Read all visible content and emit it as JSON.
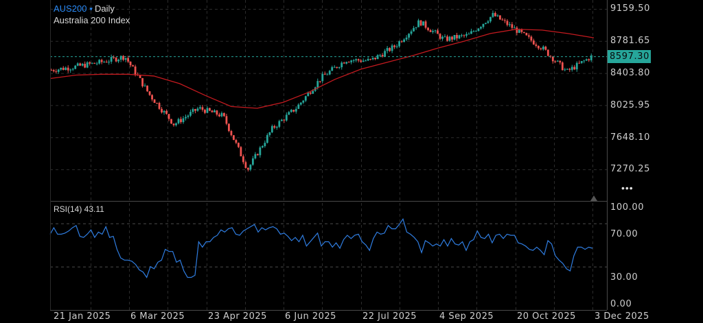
{
  "header": {
    "symbol": "AUS200",
    "symbol_caret": "▾",
    "timeframe": "Daily",
    "description": "Australia 200 Index"
  },
  "rsi_panel": {
    "label": "RSI(14) 43.11",
    "y_ticks": [
      {
        "label": "100.00",
        "value": 100
      },
      {
        "label": "70.00",
        "value": 70
      },
      {
        "label": "30.00",
        "value": 30
      },
      {
        "label": "0.00",
        "value": 0
      }
    ]
  },
  "price_axis": {
    "ticks": [
      {
        "label": "9159.50",
        "value": 9159.5
      },
      {
        "label": "8781.65",
        "value": 8781.65
      },
      {
        "label": "8403.80",
        "value": 8403.8
      },
      {
        "label": "8025.95",
        "value": 8025.95
      },
      {
        "label": "7648.10",
        "value": 7648.1
      },
      {
        "label": "7270.25",
        "value": 7270.25
      }
    ],
    "last_price_label": "8597.30",
    "more_label": "•••"
  },
  "time_axis": {
    "labels": [
      "21 Jan 2025",
      "6 Mar 2025",
      "23 Apr 2025",
      "6 Jun 2025",
      "22 Jul 2025",
      "4 Sep 2025",
      "20 Oct 2025",
      "3 Dec 2025"
    ]
  },
  "colors": {
    "up": "#26a69a",
    "down": "#ef5350",
    "ma": "#c41a1f",
    "rsi": "#2f7de1",
    "last_price": "#26a69a",
    "symbol": "#2a8af6"
  },
  "chart_data": [
    {
      "type": "candlestick",
      "title": "AUS200 Daily — Australia 200 Index",
      "x_labels": [
        "21 Jan 2025",
        "6 Mar 2025",
        "23 Apr 2025",
        "6 Jun 2025",
        "22 Jul 2025",
        "4 Sep 2025",
        "20 Oct 2025",
        "3 Dec 2025"
      ],
      "y_ticks": [
        9159.5,
        8781.65,
        8403.8,
        8025.95,
        7648.1,
        7270.25
      ],
      "ylim": [
        7100,
        9250
      ],
      "last_price": 8597.3,
      "grid": true,
      "close_path": [
        {
          "date": "Dec 2024",
          "close": 8440
        },
        {
          "date": "21 Jan 2025",
          "close": 8480
        },
        {
          "date": "early Feb 2025",
          "close": 8530
        },
        {
          "date": "mid Feb 2025",
          "close": 8600
        },
        {
          "date": "late Feb 2025",
          "close": 8150
        },
        {
          "date": "6 Mar 2025",
          "close": 7800
        },
        {
          "date": "mid Mar 2025",
          "close": 7990
        },
        {
          "date": "late Mar 2025",
          "close": 7900
        },
        {
          "date": "7 Apr 2025",
          "close": 7270
        },
        {
          "date": "mid Apr 2025",
          "close": 7750
        },
        {
          "date": "23 Apr 2025",
          "close": 8000
        },
        {
          "date": "mid May 2025",
          "close": 8350
        },
        {
          "date": "6 Jun 2025",
          "close": 8560
        },
        {
          "date": "late Jun 2025",
          "close": 8550
        },
        {
          "date": "22 Jul 2025",
          "close": 8720
        },
        {
          "date": "mid Aug 2025",
          "close": 9010
        },
        {
          "date": "4 Sep 2025",
          "close": 8800
        },
        {
          "date": "late Sep 2025",
          "close": 8850
        },
        {
          "date": "mid Oct 2025",
          "close": 9090
        },
        {
          "date": "20 Oct 2025",
          "close": 8900
        },
        {
          "date": "early Nov 2025",
          "close": 8700
        },
        {
          "date": "mid Nov 2025",
          "close": 8420
        },
        {
          "date": "3 Dec 2025",
          "close": 8597.3
        }
      ],
      "series": [
        {
          "name": "MA",
          "type": "line",
          "color": "#c41a1f",
          "values": [
            8340,
            8380,
            8390,
            8390,
            8370,
            8280,
            8140,
            8010,
            7990,
            8060,
            8180,
            8330,
            8450,
            8530,
            8610,
            8700,
            8780,
            8870,
            8920,
            8910,
            8870,
            8820
          ]
        }
      ]
    },
    {
      "type": "line",
      "title": "RSI(14)",
      "current_value": 43.11,
      "ylim": [
        0,
        100
      ],
      "reference_lines": [
        70,
        30
      ],
      "values": [
        60,
        66,
        60,
        60,
        61,
        63,
        66,
        68,
        58,
        57,
        60,
        64,
        57,
        62,
        60,
        67,
        57,
        58,
        46,
        38,
        36,
        36,
        35,
        32,
        27,
        25,
        20,
        30,
        28,
        34,
        36,
        46,
        44,
        44,
        34,
        36,
        26,
        20,
        20,
        22,
        53,
        48,
        53,
        53,
        57,
        59,
        64,
        62,
        65,
        66,
        60,
        59,
        63,
        65,
        67,
        69,
        62,
        66,
        64,
        66,
        67,
        65,
        60,
        61,
        58,
        54,
        57,
        53,
        59,
        49,
        53,
        57,
        61,
        49,
        53,
        53,
        48,
        52,
        47,
        55,
        59,
        56,
        59,
        60,
        53,
        50,
        45,
        56,
        62,
        60,
        61,
        68,
        65,
        65,
        69,
        74,
        62,
        60,
        57,
        53,
        43,
        54,
        52,
        49,
        51,
        49,
        55,
        49,
        56,
        51,
        50,
        53,
        45,
        53,
        55,
        63,
        57,
        56,
        60,
        52,
        59,
        60,
        56,
        60,
        59,
        59,
        52,
        51,
        49,
        46,
        45,
        48,
        45,
        41,
        54,
        51,
        40,
        36,
        33,
        28,
        26,
        40,
        48,
        48,
        46,
        48,
        47
      ]
    }
  ]
}
